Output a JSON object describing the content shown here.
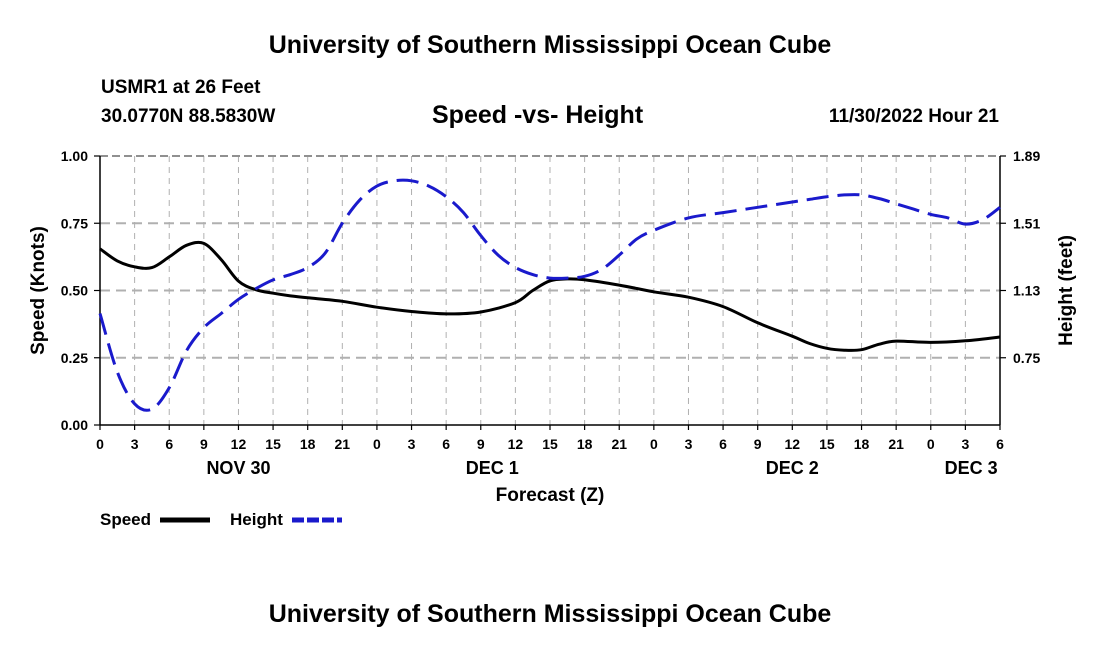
{
  "page": {
    "title": "University of Southern Mississippi Ocean Cube",
    "footer_title": "University of Southern Mississippi Ocean Cube",
    "station": "USMR1 at 26 Feet",
    "location": "30.0770N  88.5830W",
    "datetime": "11/30/2022 Hour 21"
  },
  "chart_data": {
    "type": "line",
    "title": "Speed -vs- Height",
    "xlabel": "Forecast (Z)",
    "ylabel_left": "Speed (Knots)",
    "ylabel_right": "Height (feet)",
    "x_range_hours": [
      0,
      78
    ],
    "x_ticks": [
      {
        "h": 0,
        "label": "0"
      },
      {
        "h": 3,
        "label": "3"
      },
      {
        "h": 6,
        "label": "6"
      },
      {
        "h": 9,
        "label": "9"
      },
      {
        "h": 12,
        "label": "12"
      },
      {
        "h": 15,
        "label": "15"
      },
      {
        "h": 18,
        "label": "18"
      },
      {
        "h": 21,
        "label": "21"
      },
      {
        "h": 24,
        "label": "0"
      },
      {
        "h": 27,
        "label": "3"
      },
      {
        "h": 30,
        "label": "6"
      },
      {
        "h": 33,
        "label": "9"
      },
      {
        "h": 36,
        "label": "12"
      },
      {
        "h": 39,
        "label": "15"
      },
      {
        "h": 42,
        "label": "18"
      },
      {
        "h": 45,
        "label": "21"
      },
      {
        "h": 48,
        "label": "0"
      },
      {
        "h": 51,
        "label": "3"
      },
      {
        "h": 54,
        "label": "6"
      },
      {
        "h": 57,
        "label": "9"
      },
      {
        "h": 60,
        "label": "12"
      },
      {
        "h": 63,
        "label": "15"
      },
      {
        "h": 66,
        "label": "18"
      },
      {
        "h": 69,
        "label": "21"
      },
      {
        "h": 72,
        "label": "0"
      },
      {
        "h": 75,
        "label": "3"
      },
      {
        "h": 78,
        "label": "6"
      }
    ],
    "day_labels": [
      {
        "h": 12,
        "label": "NOV 30"
      },
      {
        "h": 34,
        "label": "DEC 1"
      },
      {
        "h": 60,
        "label": "DEC 2"
      },
      {
        "h": 75.5,
        "label": "DEC 3"
      }
    ],
    "y_left": {
      "min": 0,
      "max": 1.0,
      "ticks": [
        "0.00",
        "0.25",
        "0.50",
        "0.75",
        "1.00"
      ]
    },
    "y_right": {
      "min": 0.37,
      "max": 1.89,
      "ticks": [
        "0.75",
        "1.13",
        "1.51",
        "1.89"
      ]
    },
    "legend": [
      {
        "name": "Speed",
        "color": "#000000",
        "dash": "solid"
      },
      {
        "name": "Height",
        "color": "#1a1acc",
        "dash": "dashed"
      }
    ],
    "series": [
      {
        "name": "Speed",
        "axis": "left",
        "color": "#000000",
        "x": [
          0,
          1.5,
          3,
          4.5,
          6,
          7.5,
          9,
          10.5,
          12,
          13.5,
          15,
          16.5,
          18,
          21,
          24,
          27,
          30,
          33,
          36,
          37.5,
          39,
          40.5,
          42,
          45,
          48,
          51,
          54,
          57,
          60,
          61.5,
          63,
          64.5,
          66,
          67.5,
          69,
          72,
          75,
          78
        ],
        "values": [
          0.655,
          0.61,
          0.588,
          0.585,
          0.625,
          0.668,
          0.675,
          0.615,
          0.535,
          0.503,
          0.49,
          0.48,
          0.473,
          0.46,
          0.438,
          0.422,
          0.413,
          0.42,
          0.455,
          0.5,
          0.536,
          0.543,
          0.54,
          0.52,
          0.495,
          0.475,
          0.44,
          0.38,
          0.33,
          0.303,
          0.285,
          0.278,
          0.28,
          0.3,
          0.312,
          0.307,
          0.313,
          0.327
        ]
      },
      {
        "name": "Height",
        "axis": "right",
        "color": "#1a1acc",
        "x": [
          0,
          1.5,
          3,
          4.5,
          6,
          7.5,
          9,
          10.5,
          12,
          13.5,
          15,
          16.5,
          18,
          19.5,
          21,
          22.5,
          24,
          25.5,
          27,
          28.5,
          30,
          31.5,
          33,
          34.5,
          36,
          37.5,
          39,
          40.5,
          42,
          43.5,
          45,
          46.5,
          48,
          51,
          54,
          57,
          60,
          61.5,
          63,
          64.5,
          66,
          67.5,
          69,
          70.5,
          72,
          73.5,
          75,
          76.5,
          78
        ],
        "values": [
          1.0,
          0.67,
          0.49,
          0.46,
          0.58,
          0.79,
          0.92,
          1.0,
          1.08,
          1.14,
          1.19,
          1.22,
          1.26,
          1.34,
          1.51,
          1.64,
          1.72,
          1.75,
          1.75,
          1.72,
          1.66,
          1.57,
          1.44,
          1.33,
          1.26,
          1.22,
          1.2,
          1.2,
          1.21,
          1.25,
          1.33,
          1.42,
          1.47,
          1.54,
          1.57,
          1.6,
          1.63,
          1.645,
          1.66,
          1.67,
          1.67,
          1.65,
          1.62,
          1.59,
          1.56,
          1.54,
          1.505,
          1.53,
          1.6
        ]
      }
    ]
  }
}
